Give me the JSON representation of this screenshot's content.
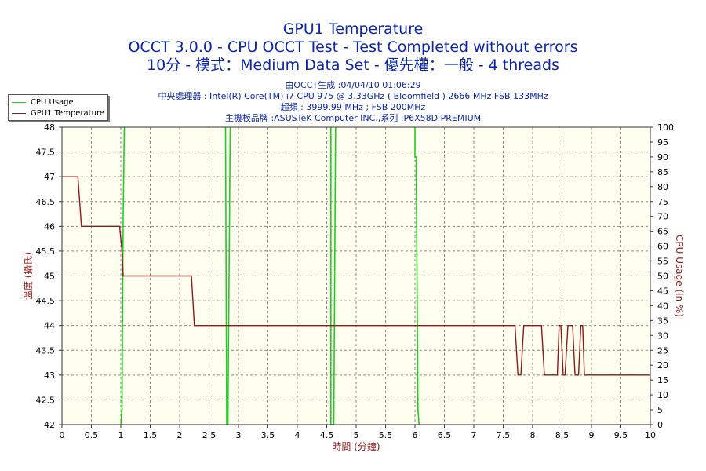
{
  "titles": {
    "line1": "GPU1 Temperature",
    "line2": "OCCT 3.0.0 - CPU OCCT Test - Test Completed without errors",
    "line3": "10分 - 模式：Medium Data Set - 優先權：一般 - 4 threads"
  },
  "info": {
    "line1": "由OCCT生成 :04/04/10 01:06:29",
    "line2": "中央處理器 : Intel(R) Core(TM) i7 CPU 975 @ 3.33GHz ( Bloomfield ) 2666 MHz FSB 133MHz",
    "line3": "超頻 : 3999.99 MHz ; FSB 200MHz",
    "line4": "主機板品牌 :ASUSTeK Computer INC.,系列 :P6X58D PREMIUM"
  },
  "colors": {
    "cpu": "#22cc22",
    "temp": "#8b1a1a",
    "plot_bg": "#fffff0",
    "grid": "#888888"
  },
  "chart_data": {
    "type": "line",
    "xlabel": "時間 (分鐘)",
    "ylabel_left": "溫度 (攝氏)",
    "ylabel_right": "CPU Usage (in %)",
    "xlim": [
      0,
      10
    ],
    "ylim_left": [
      42,
      48
    ],
    "ylim_right": [
      0,
      100
    ],
    "x_ticks": [
      "0",
      "0.5",
      "1",
      "1.5",
      "2",
      "2.5",
      "3",
      "3.5",
      "4",
      "4.5",
      "5",
      "5.5",
      "6",
      "6.5",
      "7",
      "7.5",
      "8",
      "8.5",
      "9",
      "9.5",
      "10"
    ],
    "y_ticks_left": [
      "42",
      "42.5",
      "43",
      "43.5",
      "44",
      "44.5",
      "45",
      "45.5",
      "46",
      "46.5",
      "47",
      "47.5",
      "48"
    ],
    "y_ticks_right": [
      "0",
      "5",
      "10",
      "15",
      "20",
      "25",
      "30",
      "35",
      "40",
      "45",
      "50",
      "55",
      "60",
      "65",
      "70",
      "75",
      "80",
      "85",
      "90",
      "95",
      "100"
    ],
    "grid": true,
    "legend": "top-left",
    "series": [
      {
        "name": "CPU Usage",
        "axis": "right",
        "x": [
          1.0,
          1.02,
          1.04,
          1.06,
          2.78,
          2.78,
          2.8,
          2.82,
          2.86,
          2.86,
          4.57,
          4.57,
          4.6,
          4.62,
          4.65,
          4.65,
          6.0,
          6.0,
          6.02,
          6.05,
          6.07
        ],
        "y": [
          0,
          5,
          70,
          100,
          null,
          100,
          0,
          0,
          100,
          null,
          100,
          0,
          0,
          0,
          100,
          null,
          100,
          90,
          90,
          5,
          0
        ]
      },
      {
        "name": "GPU1 Temperature",
        "axis": "left",
        "x": [
          0,
          0.27,
          0.33,
          0.98,
          1.02,
          1.04,
          2.2,
          2.25,
          7.7,
          7.75,
          7.8,
          7.85,
          8.15,
          8.2,
          8.42,
          8.45,
          8.48,
          8.52,
          8.55,
          8.6,
          8.68,
          8.72,
          8.78,
          8.82,
          8.85,
          8.88,
          8.92,
          8.95,
          10
        ],
        "y": [
          47,
          47,
          46,
          46,
          45.5,
          45,
          45,
          44,
          44,
          43,
          43,
          44,
          44,
          43,
          43,
          44,
          44,
          43,
          43,
          44,
          44,
          43,
          43,
          44,
          44,
          43,
          43,
          43,
          43
        ]
      }
    ]
  }
}
